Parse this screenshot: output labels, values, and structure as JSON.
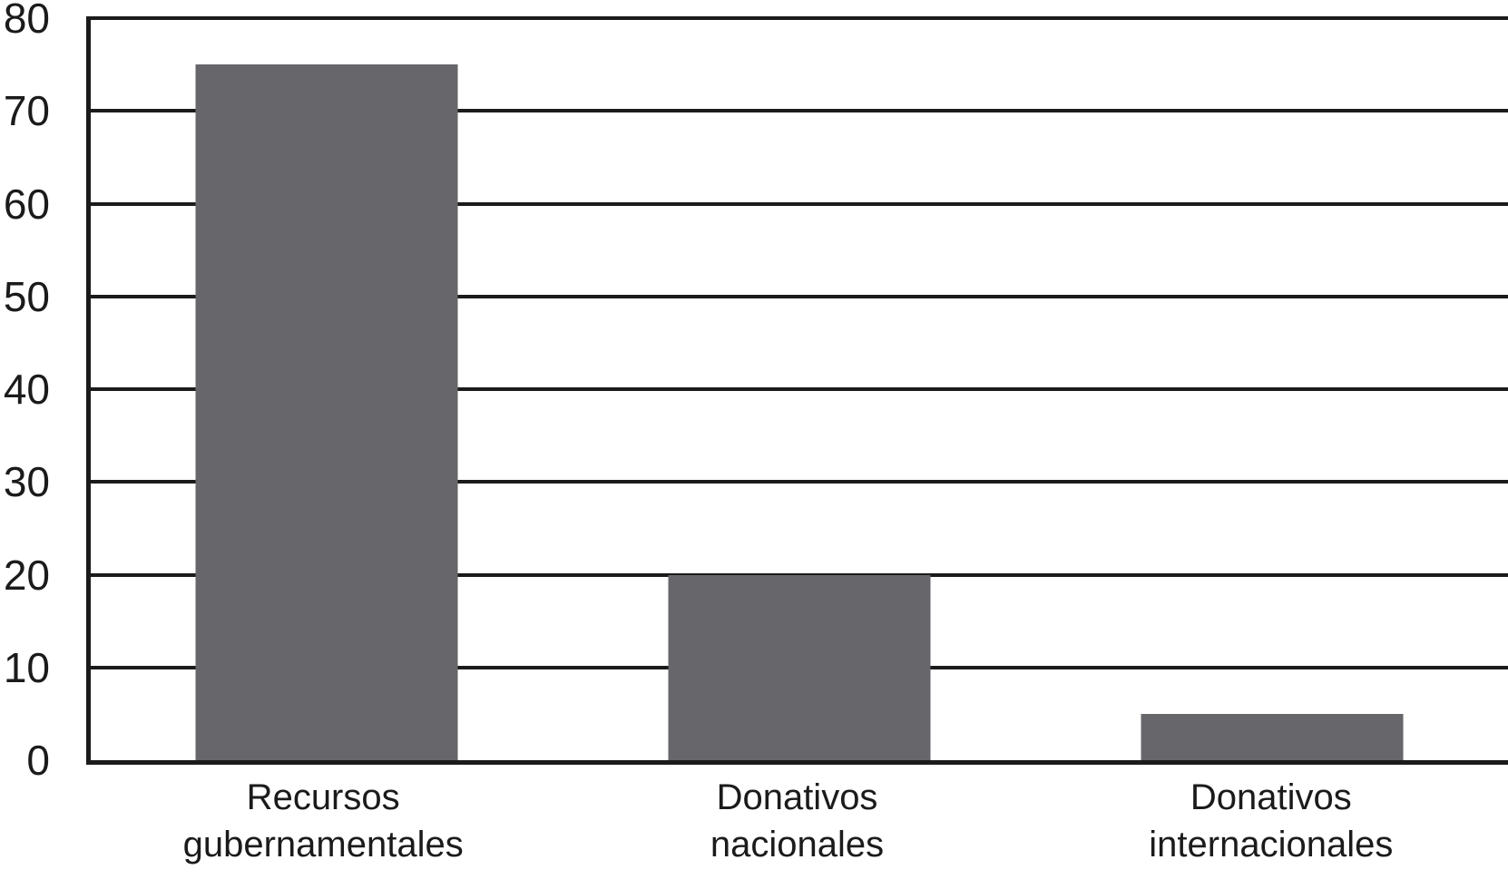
{
  "chart_data": {
    "type": "bar",
    "categories": [
      "Recursos\ngubernamentales",
      "Donativos\nnacionales",
      "Donativos\ninternacionales"
    ],
    "values": [
      75,
      20,
      5
    ],
    "title": "",
    "xlabel": "",
    "ylabel": "",
    "ylim": [
      0,
      80
    ],
    "y_ticks": [
      0,
      10,
      20,
      30,
      40,
      50,
      60,
      70,
      80
    ],
    "grid": "horizontal-only",
    "legend": "none",
    "bar_color": "#67676B",
    "axis_line_color": "#1B1B1B",
    "text_color": "#1B1B1B",
    "background_color": "#FFFFFF"
  }
}
